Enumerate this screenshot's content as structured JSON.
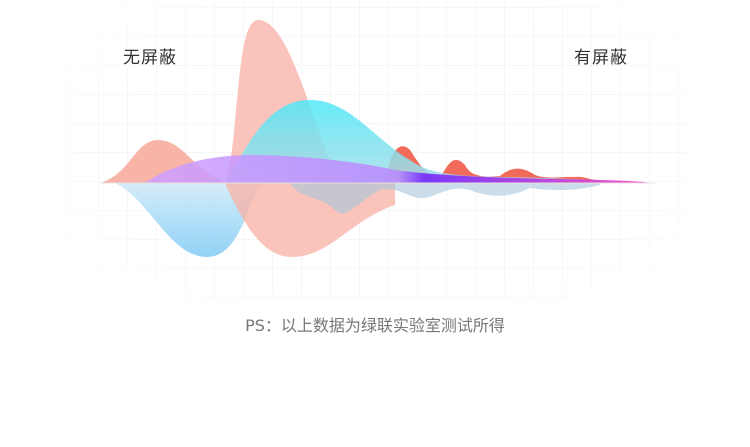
{
  "labels": {
    "left": "无屏蔽",
    "right": "有屏蔽"
  },
  "note": "PS：以上数据为绿联实验室测试所得",
  "colors": {
    "salmon": "#f7a090",
    "pink": "#f9b8b0",
    "cyan": "#40e0f5",
    "purple": "#b070ff",
    "blue": "#8fd0f5",
    "red": "#f05040"
  }
}
